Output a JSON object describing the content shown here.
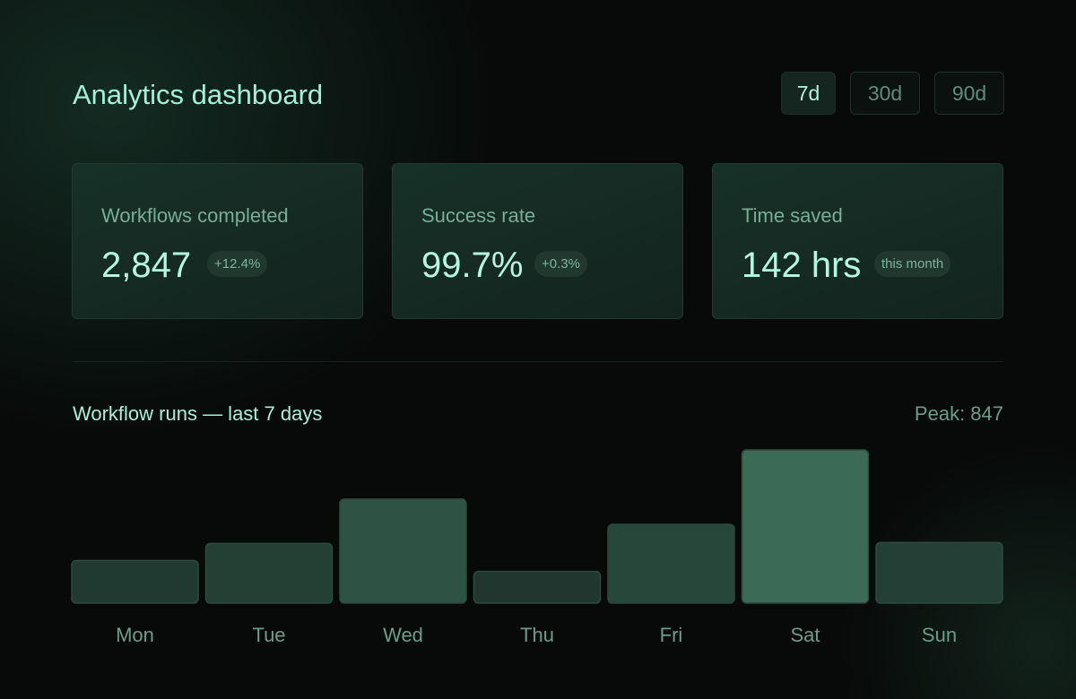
{
  "header": {
    "title": "Analytics dashboard",
    "ranges": [
      {
        "label": "7d",
        "active": true
      },
      {
        "label": "30d",
        "active": false
      },
      {
        "label": "90d",
        "active": false
      }
    ]
  },
  "stats": [
    {
      "label": "Workflows completed",
      "value": "2,847",
      "badge": "+12.4%"
    },
    {
      "label": "Success rate",
      "value": "99.7%",
      "badge": "+0.3%"
    },
    {
      "label": "Time saved",
      "value": "142 hrs",
      "badge": "this month"
    }
  ],
  "chart": {
    "title": "Workflow runs — last 7 days",
    "peak_label": "Peak: 847"
  },
  "chart_data": {
    "type": "bar",
    "title": "Workflow runs — last 7 days",
    "categories": [
      "Mon",
      "Tue",
      "Wed",
      "Thu",
      "Fri",
      "Sat",
      "Sun"
    ],
    "values": [
      235,
      330,
      575,
      175,
      435,
      847,
      335
    ],
    "ylim": [
      0,
      847
    ],
    "grid": false,
    "colors": {
      "low": "#1b2a25",
      "mid": "#26463a",
      "high": "#3b6a56",
      "stroke": "#2c4a3e"
    }
  }
}
